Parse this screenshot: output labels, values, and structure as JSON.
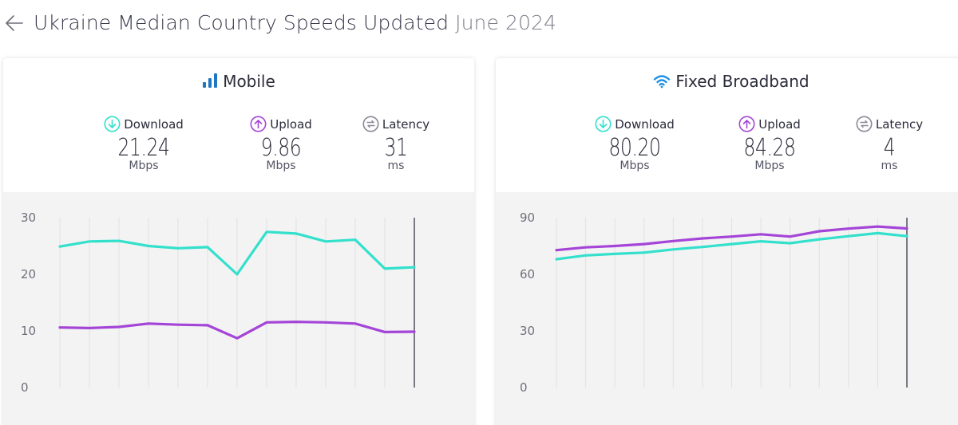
{
  "header": {
    "title": "Ukraine Median Country Speeds Updated",
    "date": "June 2024",
    "back_icon": "arrow-left-icon"
  },
  "colors": {
    "download": "#33e0cc",
    "upload": "#a445d8",
    "latency": "#8a8a96",
    "accent_blue": "#1f77c4",
    "wifi_blue": "#1e90e6"
  },
  "mobile": {
    "title": "Mobile",
    "icon": "signal-bars-icon",
    "metrics": [
      {
        "key": "download",
        "label": "Download",
        "value": "21.24",
        "unit": "Mbps",
        "icon": "download-arrow-icon"
      },
      {
        "key": "upload",
        "label": "Upload",
        "value": "9.86",
        "unit": "Mbps",
        "icon": "upload-arrow-icon"
      },
      {
        "key": "latency",
        "label": "Latency",
        "value": "31",
        "unit": "ms",
        "icon": "latency-icon"
      }
    ]
  },
  "fixed": {
    "title": "Fixed Broadband",
    "icon": "wifi-icon",
    "metrics": [
      {
        "key": "download",
        "label": "Download",
        "value": "80.20",
        "unit": "Mbps",
        "icon": "download-arrow-icon"
      },
      {
        "key": "upload",
        "label": "Upload",
        "value": "84.28",
        "unit": "Mbps",
        "icon": "upload-arrow-icon"
      },
      {
        "key": "latency",
        "label": "Latency",
        "value": "4",
        "unit": "ms",
        "icon": "latency-icon"
      }
    ]
  },
  "chart_data": [
    {
      "type": "line",
      "yticks": [
        "30",
        "20",
        "10",
        "0"
      ],
      "ylim": [
        0,
        30
      ],
      "grid": "vertical",
      "series": [
        {
          "key": "download",
          "values": [
            24.9,
            25.8,
            25.9,
            25.0,
            24.6,
            24.8,
            20.0,
            27.5,
            27.2,
            25.8,
            26.1,
            21.0,
            21.24
          ]
        },
        {
          "key": "upload",
          "values": [
            10.6,
            10.5,
            10.7,
            11.3,
            11.1,
            11.0,
            8.7,
            11.5,
            11.6,
            11.5,
            11.3,
            9.8,
            9.86
          ]
        }
      ]
    },
    {
      "type": "line",
      "yticks": [
        "90",
        "60",
        "30",
        "0"
      ],
      "ylim": [
        0,
        90
      ],
      "grid": "vertical",
      "series": [
        {
          "key": "download",
          "values": [
            68.0,
            70.0,
            70.8,
            71.5,
            73.2,
            74.5,
            76.0,
            77.5,
            76.5,
            78.5,
            80.2,
            81.8,
            80.2
          ]
        },
        {
          "key": "upload",
          "values": [
            72.8,
            74.3,
            75.0,
            76.0,
            77.6,
            79.0,
            80.0,
            81.2,
            80.0,
            82.8,
            84.2,
            85.3,
            84.28
          ]
        }
      ]
    }
  ]
}
